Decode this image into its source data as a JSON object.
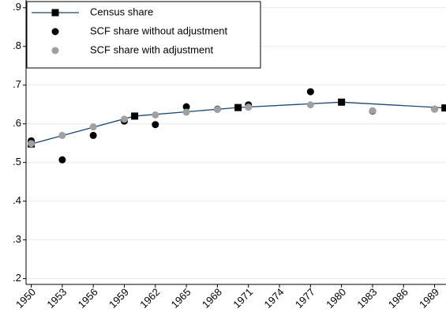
{
  "chart_data": {
    "type": "line",
    "xlim": [
      1949.5,
      1990.1
    ],
    "xticks": [
      1950,
      1953,
      1956,
      1959,
      1962,
      1965,
      1968,
      1971,
      1974,
      1977,
      1980,
      1983,
      1986,
      1989
    ],
    "ylim": [
      0.185,
      0.92
    ],
    "yticks": [
      {
        "value": 0.2,
        "label": ".2"
      },
      {
        "value": 0.3,
        "label": ".3"
      },
      {
        "value": 0.4,
        "label": ".4"
      },
      {
        "value": 0.5,
        "label": ".5"
      },
      {
        "value": 0.6,
        "label": ".6"
      },
      {
        "value": 0.7,
        "label": ".7"
      },
      {
        "value": 0.8,
        "label": ".8"
      },
      {
        "value": 0.9,
        "label": ".9"
      }
    ],
    "grid": true,
    "legend": "top-left",
    "series": [
      {
        "name": "Census share",
        "color": "#1a476f",
        "marker": "square",
        "marker_color": "#000000",
        "line": true,
        "x": [
          1950,
          1960,
          1970,
          1980,
          1990
        ],
        "values": [
          0.548,
          0.62,
          0.642,
          0.656,
          0.641
        ]
      },
      {
        "name": "SCF share without adjustment",
        "color": "#000000",
        "marker": "circle",
        "line": false,
        "x": [
          1950,
          1953,
          1956,
          1959,
          1962,
          1965,
          1968,
          1971,
          1977,
          1983,
          1989
        ],
        "values": [
          0.556,
          0.507,
          0.57,
          0.607,
          0.598,
          0.644,
          0.638,
          0.649,
          0.683,
          0.633,
          0.638
        ]
      },
      {
        "name": "SCF share with adjustment",
        "color": "#a0a0a0",
        "marker": "circle",
        "line": false,
        "x": [
          1950,
          1953,
          1956,
          1959,
          1962,
          1965,
          1968,
          1971,
          1977,
          1983,
          1989
        ],
        "values": [
          0.549,
          0.57,
          0.592,
          0.612,
          0.623,
          0.63,
          0.637,
          0.643,
          0.649,
          0.634,
          0.638
        ]
      }
    ]
  }
}
